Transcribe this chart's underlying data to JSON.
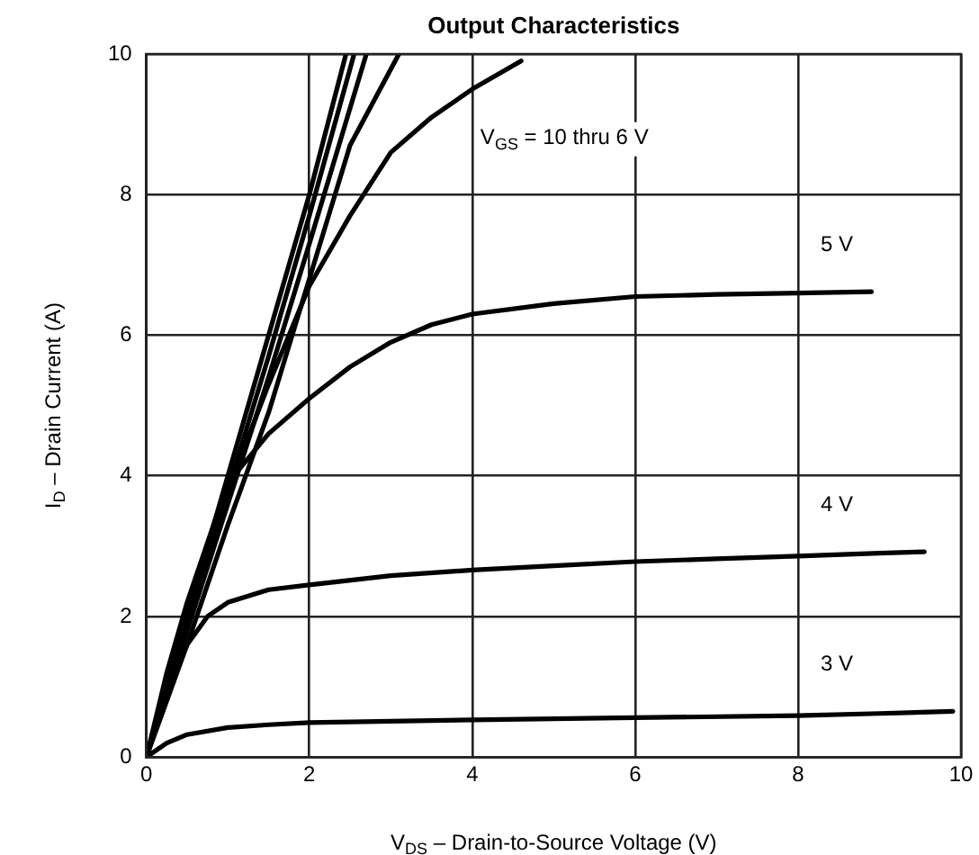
{
  "chart_data": {
    "type": "line",
    "title": "Output Characteristics",
    "xlabel": "V$_{DS}$ – Drain-to-Source Voltage (V)",
    "ylabel": "I$_{D}$ – Drain Current (A)",
    "annotations": [
      "V$_{GS}$ = 10 thru 6 V"
    ],
    "xlim": [
      0,
      10
    ],
    "ylim": [
      0,
      10
    ],
    "xticks": [
      0,
      2,
      4,
      6,
      8,
      10
    ],
    "yticks": [
      0,
      2,
      4,
      6,
      8,
      10
    ],
    "grid": true,
    "marker": "none",
    "line_style": "solid",
    "series": [
      {
        "name": "3 V",
        "color": "#000000",
        "x": [
          0,
          0.25,
          0.5,
          1,
          1.5,
          2,
          3,
          4,
          6,
          8,
          9,
          9.9
        ],
        "values": [
          0,
          0.2,
          0.32,
          0.42,
          0.46,
          0.49,
          0.51,
          0.53,
          0.56,
          0.59,
          0.62,
          0.65
        ]
      },
      {
        "name": "4 V",
        "color": "#000000",
        "x": [
          0,
          0.25,
          0.5,
          0.75,
          1,
          1.5,
          2,
          3,
          4,
          5,
          6,
          7,
          8,
          9,
          9.55
        ],
        "values": [
          0,
          0.9,
          1.6,
          2.0,
          2.2,
          2.38,
          2.45,
          2.58,
          2.66,
          2.72,
          2.78,
          2.82,
          2.86,
          2.9,
          2.92
        ]
      },
      {
        "name": "5 V",
        "color": "#000000",
        "x": [
          0,
          0.25,
          0.5,
          1,
          1.5,
          2,
          2.5,
          3,
          3.5,
          4,
          5,
          6,
          7,
          8,
          8.9
        ],
        "values": [
          0,
          1.2,
          2.2,
          3.9,
          4.6,
          5.1,
          5.55,
          5.9,
          6.15,
          6.3,
          6.45,
          6.55,
          6.58,
          6.6,
          6.62
        ]
      },
      {
        "color": "#000000",
        "x": [
          0,
          0.5,
          1,
          1.5,
          2,
          2.5,
          3,
          3.5,
          4,
          4.6
        ],
        "values": [
          0,
          1.9,
          3.8,
          5.3,
          6.7,
          7.7,
          8.6,
          9.1,
          9.5,
          9.9
        ]
      },
      {
        "color": "#000000",
        "x": [
          0,
          0.5,
          1,
          1.5,
          2,
          2.5,
          3.1
        ],
        "values": [
          0,
          1.6,
          3.3,
          4.9,
          6.8,
          8.7,
          10
        ]
      },
      {
        "color": "#000000",
        "x": [
          0,
          0.5,
          1,
          1.5,
          2,
          2.7
        ],
        "values": [
          0,
          1.8,
          3.6,
          5.4,
          7.3,
          10
        ]
      },
      {
        "color": "#000000",
        "x": [
          0,
          0.5,
          1,
          1.5,
          2,
          2.55
        ],
        "values": [
          0,
          1.9,
          3.8,
          5.7,
          7.7,
          10
        ]
      },
      {
        "color": "#000000",
        "x": [
          0,
          0.5,
          1,
          1.5,
          2,
          2.45
        ],
        "values": [
          0,
          2.0,
          4.0,
          6.0,
          8.0,
          10
        ]
      }
    ]
  }
}
